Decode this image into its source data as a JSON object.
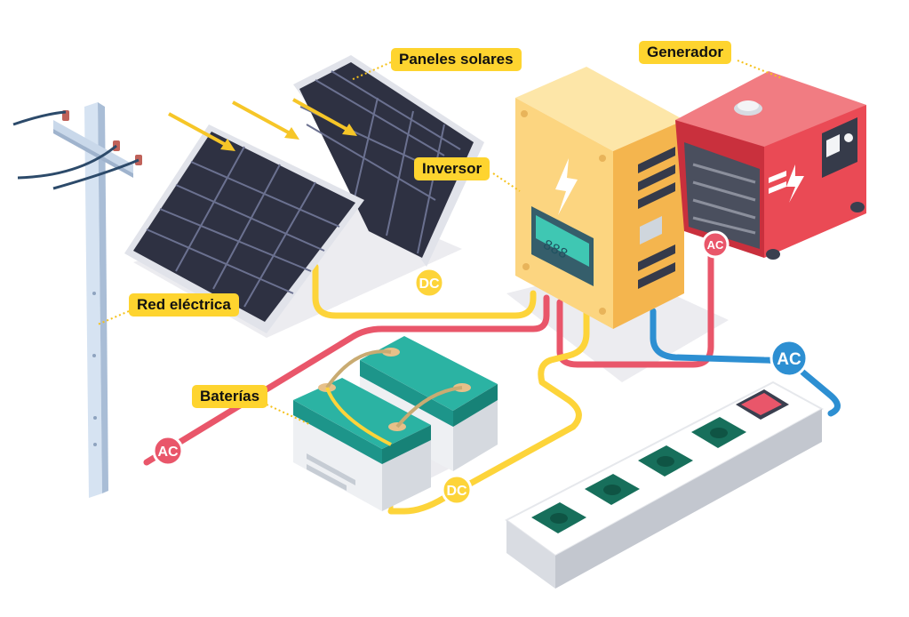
{
  "labels": {
    "paneles": "Paneles solares",
    "generador": "Generador",
    "inversor": "Inversor",
    "red": "Red eléctrica",
    "baterias": "Baterías"
  },
  "badges": {
    "dc_panels": "DC",
    "dc_batteries": "DC",
    "ac_grid": "AC",
    "ac_generator": "AC",
    "ac_outlet": "AC"
  },
  "inverter_display": "888",
  "colors": {
    "dc_cable": "#fdd43a",
    "ac_red": "#e9566a",
    "ac_blue": "#2d8fd2",
    "label_bg": "#fed42f",
    "battery": "#2bb3a3",
    "inverter": "#fcd580",
    "generator": "#ea4a55",
    "panel": "#2e3142",
    "outlet": "#176f5b"
  }
}
